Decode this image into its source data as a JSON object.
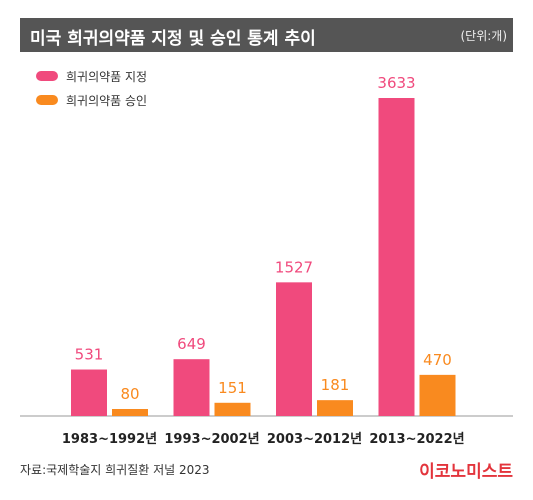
{
  "header": {
    "title": "미국 희귀의약품 지정 및 승인 통계 추이",
    "unit": "(단위:개)"
  },
  "footer": {
    "source": "자료:국제학술지 희귀질환 저널 2023",
    "brand": "이코노미스트"
  },
  "colors": {
    "designation": "#f04a7d",
    "approval": "#f98a1f",
    "title_bg": "#555555"
  },
  "chart_data": {
    "type": "bar",
    "categories": [
      "1983~1992년",
      "1993~2002년",
      "2003~2012년",
      "2013~2022년"
    ],
    "series": [
      {
        "name": "희귀의약품 지정",
        "values": [
          531,
          649,
          1527,
          3633
        ]
      },
      {
        "name": "희귀의약품 승인",
        "values": [
          80,
          151,
          181,
          470
        ]
      }
    ],
    "data_labels": true,
    "legend_position": "top-left",
    "grid": false,
    "ylim": [
      0,
      3633
    ]
  }
}
